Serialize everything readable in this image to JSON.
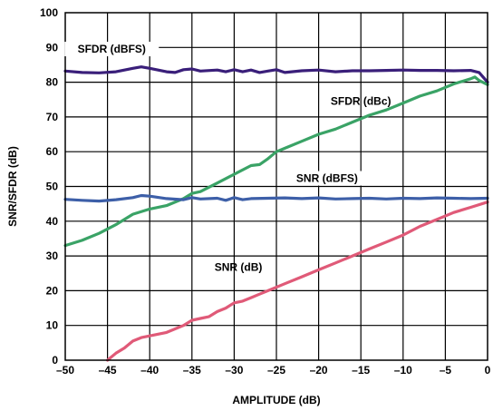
{
  "chart_data": {
    "type": "line",
    "xlabel": "AMPLITUDE (dB)",
    "ylabel": "SNR/SFDR (dB)",
    "xlim": [
      -50,
      0
    ],
    "ylim": [
      0,
      100
    ],
    "x_ticks": [
      "–50",
      "–45",
      "–40",
      "–35",
      "–30",
      "–25",
      "–20",
      "–15",
      "–10",
      "–5",
      "0"
    ],
    "y_ticks": [
      "0",
      "10",
      "20",
      "30",
      "40",
      "50",
      "60",
      "70",
      "80",
      "90",
      "100"
    ],
    "grid": true,
    "series": [
      {
        "name": "SFDR (dBFS)",
        "color": "#3a1f7a",
        "points": [
          [
            -50,
            83.2
          ],
          [
            -48,
            82.8
          ],
          [
            -46,
            82.7
          ],
          [
            -44,
            83.0
          ],
          [
            -42,
            84.0
          ],
          [
            -41,
            84.4
          ],
          [
            -40,
            84.0
          ],
          [
            -38,
            83.0
          ],
          [
            -37,
            82.8
          ],
          [
            -36,
            83.6
          ],
          [
            -35,
            83.8
          ],
          [
            -34,
            83.2
          ],
          [
            -32,
            83.5
          ],
          [
            -31,
            83.0
          ],
          [
            -30,
            83.6
          ],
          [
            -29,
            83.0
          ],
          [
            -28,
            83.5
          ],
          [
            -27,
            82.8
          ],
          [
            -26,
            83.2
          ],
          [
            -25,
            83.6
          ],
          [
            -24,
            82.8
          ],
          [
            -22,
            83.3
          ],
          [
            -20,
            83.5
          ],
          [
            -18,
            83.0
          ],
          [
            -16,
            83.3
          ],
          [
            -14,
            83.3
          ],
          [
            -12,
            83.4
          ],
          [
            -10,
            83.5
          ],
          [
            -8,
            83.4
          ],
          [
            -6,
            83.4
          ],
          [
            -4,
            83.3
          ],
          [
            -2,
            83.4
          ],
          [
            -1,
            82.8
          ],
          [
            0,
            80.0
          ]
        ]
      },
      {
        "name": "SFDR (dBc)",
        "color": "#3aa366",
        "points": [
          [
            -50,
            33.0
          ],
          [
            -48,
            34.5
          ],
          [
            -46,
            36.5
          ],
          [
            -44,
            39.0
          ],
          [
            -42,
            42.0
          ],
          [
            -40,
            43.5
          ],
          [
            -38,
            44.5
          ],
          [
            -36,
            46.5
          ],
          [
            -35,
            48.0
          ],
          [
            -34,
            48.5
          ],
          [
            -32,
            51.0
          ],
          [
            -30,
            53.5
          ],
          [
            -28,
            56.0
          ],
          [
            -27,
            56.3
          ],
          [
            -26,
            58.0
          ],
          [
            -25,
            60.0
          ],
          [
            -24,
            61.0
          ],
          [
            -22,
            63.0
          ],
          [
            -20,
            65.0
          ],
          [
            -18,
            66.5
          ],
          [
            -16,
            68.5
          ],
          [
            -14,
            70.5
          ],
          [
            -12,
            72.0
          ],
          [
            -10,
            74.0
          ],
          [
            -8,
            76.0
          ],
          [
            -6,
            77.5
          ],
          [
            -4,
            79.5
          ],
          [
            -2,
            81.0
          ],
          [
            -1.5,
            81.5
          ],
          [
            -1,
            80.5
          ],
          [
            0,
            79.3
          ]
        ]
      },
      {
        "name": "SNR (dBFS)",
        "color": "#3d5fa8",
        "points": [
          [
            -50,
            46.3
          ],
          [
            -48,
            46.0
          ],
          [
            -46,
            45.8
          ],
          [
            -44,
            46.2
          ],
          [
            -42,
            46.8
          ],
          [
            -41,
            47.4
          ],
          [
            -40,
            47.2
          ],
          [
            -38,
            46.5
          ],
          [
            -36,
            46.2
          ],
          [
            -35,
            46.8
          ],
          [
            -34,
            46.4
          ],
          [
            -32,
            46.6
          ],
          [
            -31,
            46.0
          ],
          [
            -30,
            46.8
          ],
          [
            -29,
            46.2
          ],
          [
            -28,
            46.5
          ],
          [
            -26,
            46.6
          ],
          [
            -24,
            46.7
          ],
          [
            -22,
            46.5
          ],
          [
            -20,
            46.7
          ],
          [
            -18,
            46.4
          ],
          [
            -16,
            46.5
          ],
          [
            -14,
            46.6
          ],
          [
            -12,
            46.4
          ],
          [
            -10,
            46.6
          ],
          [
            -8,
            46.5
          ],
          [
            -6,
            46.7
          ],
          [
            -4,
            46.6
          ],
          [
            -2,
            46.5
          ],
          [
            0,
            46.6
          ]
        ]
      },
      {
        "name": "SNR (dB)",
        "color": "#e05a78",
        "points": [
          [
            -45,
            0
          ],
          [
            -44,
            2.0
          ],
          [
            -43,
            3.5
          ],
          [
            -42,
            5.5
          ],
          [
            -41,
            6.5
          ],
          [
            -40,
            7.0
          ],
          [
            -38,
            8.0
          ],
          [
            -36,
            10.0
          ],
          [
            -35,
            11.5
          ],
          [
            -34,
            12.0
          ],
          [
            -33,
            12.5
          ],
          [
            -32,
            14.0
          ],
          [
            -31,
            15.0
          ],
          [
            -30,
            16.5
          ],
          [
            -29,
            17.0
          ],
          [
            -28,
            18.0
          ],
          [
            -27,
            19.0
          ],
          [
            -26,
            20.0
          ],
          [
            -24,
            22.0
          ],
          [
            -22,
            24.0
          ],
          [
            -20,
            26.0
          ],
          [
            -18,
            28.0
          ],
          [
            -16,
            30.0
          ],
          [
            -14,
            32.0
          ],
          [
            -12,
            34.0
          ],
          [
            -10,
            36.0
          ],
          [
            -8,
            38.5
          ],
          [
            -6,
            40.5
          ],
          [
            -4,
            42.5
          ],
          [
            -2,
            44.0
          ],
          [
            0,
            45.5
          ]
        ]
      }
    ]
  }
}
